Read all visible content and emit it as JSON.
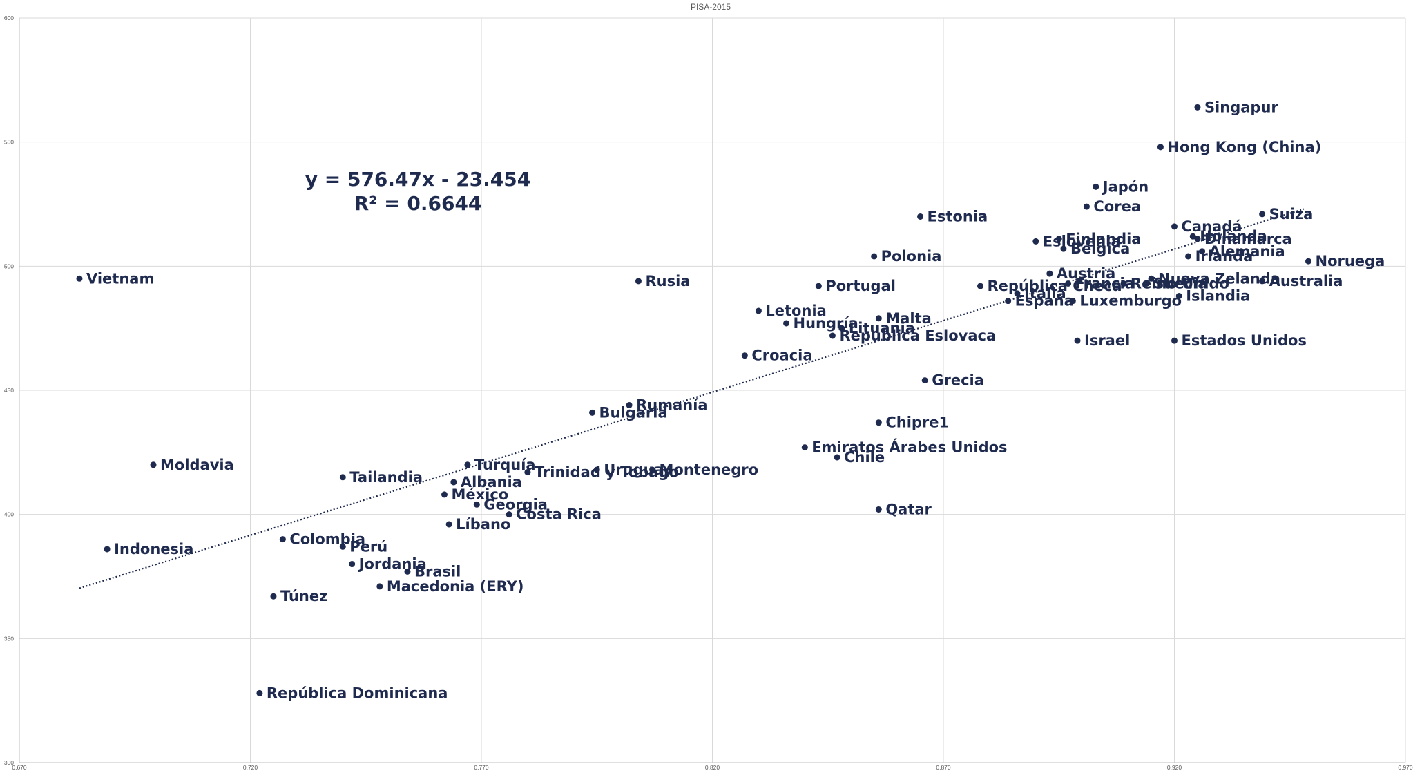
{
  "chart_data": {
    "type": "scatter",
    "title": "PISA-2015",
    "xlabel": "",
    "ylabel": "",
    "xlim": [
      0.67,
      0.97
    ],
    "ylim": [
      300,
      600
    ],
    "x_ticks": [
      0.67,
      0.72,
      0.77,
      0.82,
      0.87,
      0.92,
      0.97
    ],
    "x_tick_labels": [
      "0.670",
      "0.720",
      "0.770",
      "0.820",
      "0.870",
      "0.920",
      "0.970"
    ],
    "y_ticks": [
      300,
      350,
      400,
      450,
      500,
      550,
      600
    ],
    "y_tick_labels": [
      "300",
      "350",
      "400",
      "450",
      "500",
      "550",
      "600"
    ],
    "grid": true,
    "legend": "none",
    "colors": {
      "point": "#1f2a4f",
      "label": "#1f2a4f",
      "grid": "#d9d9d9",
      "axis": "#bfbfbf",
      "tick_label": "#595959",
      "trendline": "#1f2a4f"
    },
    "trendline": {
      "type": "linear",
      "slope": 576.47,
      "intercept": -23.454,
      "x_range": [
        0.683,
        0.948
      ],
      "style": "dotted"
    },
    "annotations": [
      "y = 576.47x - 23.454",
      "R² = 0.6644"
    ],
    "points": [
      {
        "label": "Vietnam",
        "x": 0.683,
        "y": 495
      },
      {
        "label": "Moldavia",
        "x": 0.699,
        "y": 420
      },
      {
        "label": "Indonesia",
        "x": 0.689,
        "y": 386
      },
      {
        "label": "República Dominicana",
        "x": 0.722,
        "y": 328
      },
      {
        "label": "Túnez",
        "x": 0.725,
        "y": 367
      },
      {
        "label": "Colombia",
        "x": 0.727,
        "y": 390
      },
      {
        "label": "Tailandia",
        "x": 0.74,
        "y": 415
      },
      {
        "label": "Perú",
        "x": 0.74,
        "y": 387
      },
      {
        "label": "Jordania",
        "x": 0.742,
        "y": 380
      },
      {
        "label": "Macedonia (ERY)",
        "x": 0.748,
        "y": 371
      },
      {
        "label": "Brasil",
        "x": 0.754,
        "y": 377
      },
      {
        "label": "Líbano",
        "x": 0.763,
        "y": 396
      },
      {
        "label": "México",
        "x": 0.762,
        "y": 408
      },
      {
        "label": "Albania",
        "x": 0.764,
        "y": 413
      },
      {
        "label": "Turquía",
        "x": 0.767,
        "y": 420
      },
      {
        "label": "Georgia",
        "x": 0.769,
        "y": 404
      },
      {
        "label": "Costa Rica",
        "x": 0.776,
        "y": 400
      },
      {
        "label": "Trinidad y Tobago",
        "x": 0.78,
        "y": 417
      },
      {
        "label": "Uruguay",
        "x": 0.795,
        "y": 418
      },
      {
        "label": "Montenegro",
        "x": 0.807,
        "y": 418
      },
      {
        "label": "Bulgaria",
        "x": 0.794,
        "y": 441
      },
      {
        "label": "Rumanía",
        "x": 0.802,
        "y": 444
      },
      {
        "label": "Rusia",
        "x": 0.804,
        "y": 494
      },
      {
        "label": "Croacia",
        "x": 0.827,
        "y": 464
      },
      {
        "label": "Letonia",
        "x": 0.83,
        "y": 482
      },
      {
        "label": "Hungría",
        "x": 0.836,
        "y": 477
      },
      {
        "label": "Emiratos Árabes Unidos",
        "x": 0.84,
        "y": 427
      },
      {
        "label": "Portugal",
        "x": 0.843,
        "y": 492
      },
      {
        "label": "Chile",
        "x": 0.847,
        "y": 423
      },
      {
        "label": "Lituania",
        "x": 0.848,
        "y": 475
      },
      {
        "label": "República Eslovaca",
        "x": 0.846,
        "y": 472
      },
      {
        "label": "Polonia",
        "x": 0.855,
        "y": 504
      },
      {
        "label": "Malta",
        "x": 0.856,
        "y": 479
      },
      {
        "label": "Chipre1",
        "x": 0.856,
        "y": 437
      },
      {
        "label": "Qatar",
        "x": 0.856,
        "y": 402
      },
      {
        "label": "Estonia",
        "x": 0.865,
        "y": 520
      },
      {
        "label": "Grecia",
        "x": 0.866,
        "y": 454
      },
      {
        "label": "República Checa",
        "x": 0.878,
        "y": 492
      },
      {
        "label": "España",
        "x": 0.884,
        "y": 486
      },
      {
        "label": "Italia",
        "x": 0.886,
        "y": 489
      },
      {
        "label": "Eslovenia",
        "x": 0.89,
        "y": 510
      },
      {
        "label": "Austria",
        "x": 0.893,
        "y": 497
      },
      {
        "label": "Finlandia",
        "x": 0.895,
        "y": 511
      },
      {
        "label": "Bélgica",
        "x": 0.896,
        "y": 507
      },
      {
        "label": "Francia",
        "x": 0.897,
        "y": 493
      },
      {
        "label": "Luxemburgo",
        "x": 0.898,
        "y": 486
      },
      {
        "label": "Israel",
        "x": 0.899,
        "y": 470
      },
      {
        "label": "Corea",
        "x": 0.901,
        "y": 524
      },
      {
        "label": "Japón",
        "x": 0.903,
        "y": 532
      },
      {
        "label": "Reino Unido",
        "x": 0.909,
        "y": 493
      },
      {
        "label": "Suecia",
        "x": 0.914,
        "y": 493
      },
      {
        "label": "Nueva Zelanda",
        "x": 0.915,
        "y": 495
      },
      {
        "label": "Hong Kong (China)",
        "x": 0.917,
        "y": 548
      },
      {
        "label": "Canadá",
        "x": 0.92,
        "y": 516
      },
      {
        "label": "Estados Unidos",
        "x": 0.92,
        "y": 470
      },
      {
        "label": "Irlanda",
        "x": 0.923,
        "y": 504
      },
      {
        "label": "Islandia",
        "x": 0.921,
        "y": 488
      },
      {
        "label": "Holanda",
        "x": 0.924,
        "y": 512
      },
      {
        "label": "Dinamarca",
        "x": 0.925,
        "y": 511
      },
      {
        "label": "Singapur",
        "x": 0.925,
        "y": 564
      },
      {
        "label": "Alemania",
        "x": 0.926,
        "y": 506
      },
      {
        "label": "Suiza",
        "x": 0.939,
        "y": 521
      },
      {
        "label": "Australia",
        "x": 0.939,
        "y": 494
      },
      {
        "label": "Noruega",
        "x": 0.949,
        "y": 502
      }
    ]
  }
}
